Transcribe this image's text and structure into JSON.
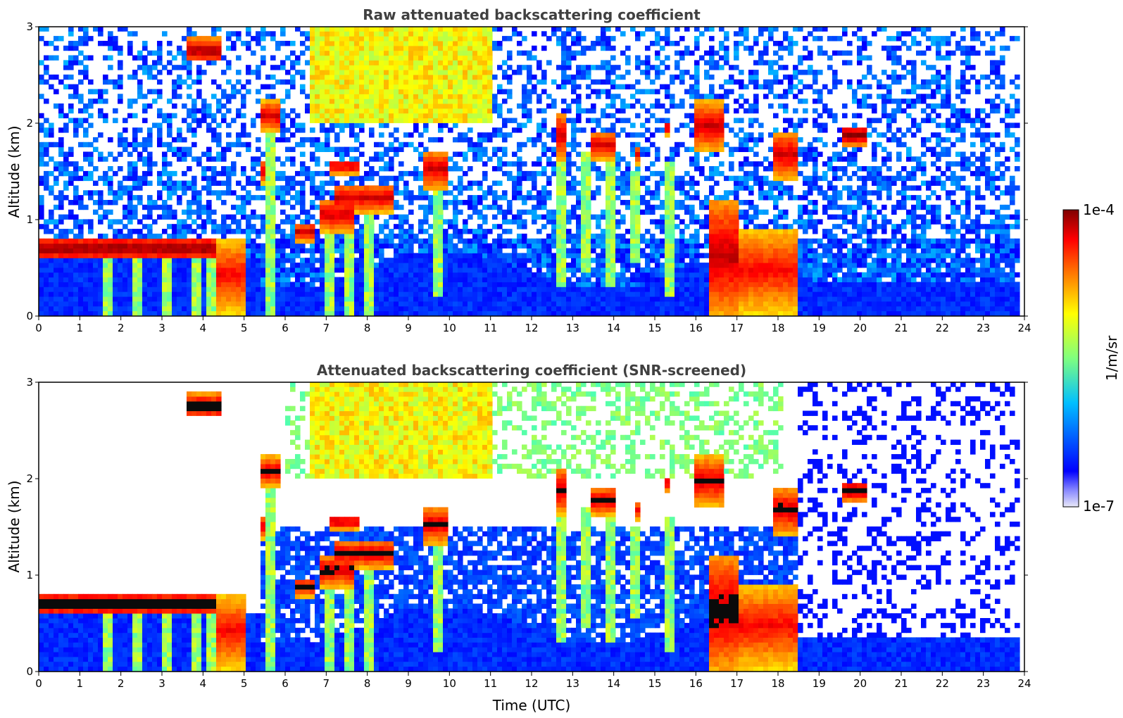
{
  "chart_data": [
    {
      "type": "heatmap",
      "title": "Raw attenuated backscattering coefficient",
      "xlabel": "",
      "ylabel": "Altitude (km)",
      "xlim": [
        0,
        24
      ],
      "ylim": [
        0,
        3
      ],
      "xticks": [
        "0",
        "1",
        "2",
        "3",
        "4",
        "5",
        "6",
        "7",
        "8",
        "9",
        "10",
        "11",
        "12",
        "13",
        "14",
        "15",
        "16",
        "17",
        "18",
        "19",
        "20",
        "21",
        "22",
        "23",
        "24"
      ],
      "yticks": [
        "0",
        "1",
        "2",
        "3"
      ],
      "features": [
        {
          "label": "low cloud layer",
          "x": [
            0.0,
            4.3
          ],
          "y": [
            0.55,
            0.8
          ],
          "level": "1e-4"
        },
        {
          "label": "dense convective column",
          "x": [
            16.0,
            18.4
          ],
          "y": [
            0.0,
            2.2
          ],
          "level": "1e-4"
        },
        {
          "label": "elevated cloud",
          "x": [
            19.5,
            20.1
          ],
          "y": [
            1.75,
            1.95
          ],
          "level": "1e-4"
        },
        {
          "label": "high cloud",
          "x": [
            3.5,
            4.4
          ],
          "y": [
            2.6,
            2.85
          ],
          "level": "1e-4"
        }
      ]
    },
    {
      "type": "heatmap",
      "title": "Attenuated backscattering coefficient (SNR-screened)",
      "xlabel": "Time (UTC)",
      "ylabel": "Altitude (km)",
      "xlim": [
        0,
        24
      ],
      "ylim": [
        0,
        3
      ],
      "xticks": [
        "0",
        "1",
        "2",
        "3",
        "4",
        "5",
        "6",
        "7",
        "8",
        "9",
        "10",
        "11",
        "12",
        "13",
        "14",
        "15",
        "16",
        "17",
        "18",
        "19",
        "20",
        "21",
        "22",
        "23",
        "24"
      ],
      "yticks": [
        "0",
        "1",
        "2",
        "3"
      ]
    }
  ],
  "colorbar": {
    "label": "1/m/sr",
    "max_label": "1e-4",
    "min_label": "1e-7",
    "colormap": "jet",
    "colors": [
      "#e8e8f8",
      "#0000ff",
      "#00c8ff",
      "#7fff7f",
      "#ffff00",
      "#ff7f00",
      "#ff0000",
      "#7f0000"
    ]
  }
}
